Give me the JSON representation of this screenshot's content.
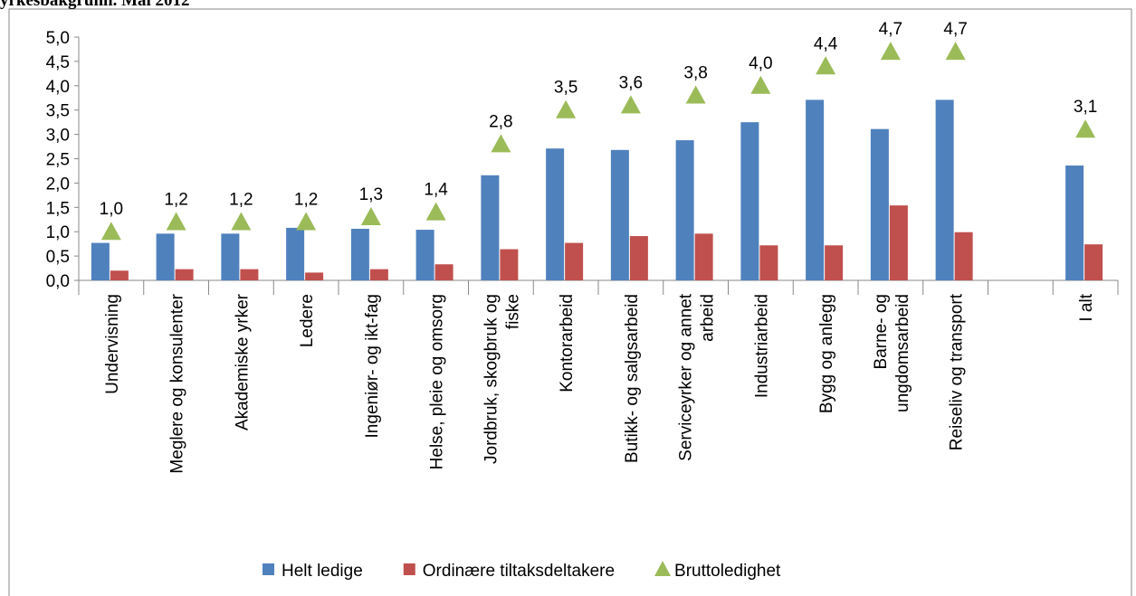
{
  "chart_data": {
    "type": "bar",
    "title": "yrkesbakgrunn. Mai 2012",
    "categories": [
      "Undervisning",
      "Meglere og konsulenter",
      "Akademiske yrker",
      "Ledere",
      "Ingeniør- og ikt-fag",
      "Helse, pleie og omsorg",
      "Jordbruk, skogbruk og fiske",
      "Kontorarbeid",
      "Butikk- og salgsarbeid",
      "Serviceyrker og annet arbeid",
      "Industriarbeid",
      "Bygg og anlegg",
      "Barne- og ungdomsarbeid",
      "Reiseliv og transport",
      null,
      "I alt"
    ],
    "series": [
      {
        "name": "Helt ledige",
        "color": "#4f81bd",
        "values": [
          0.77,
          0.96,
          0.96,
          1.08,
          1.06,
          1.04,
          2.16,
          2.71,
          2.68,
          2.88,
          3.25,
          3.71,
          3.11,
          3.71,
          null,
          2.36
        ]
      },
      {
        "name": "Ordinære tiltaksdeltakere",
        "color": "#c0504d",
        "values": [
          0.2,
          0.23,
          0.23,
          0.16,
          0.23,
          0.33,
          0.64,
          0.77,
          0.91,
          0.96,
          0.72,
          0.72,
          1.54,
          0.99,
          null,
          0.74
        ]
      },
      {
        "name": "Bruttoledighet",
        "color": "#9bbb59",
        "marker": "triangle",
        "values": [
          1.0,
          1.2,
          1.2,
          1.2,
          1.3,
          1.4,
          2.8,
          3.5,
          3.6,
          3.8,
          4.0,
          4.4,
          4.7,
          4.7,
          null,
          3.1
        ],
        "value_labels": [
          "1,0",
          "1,2",
          "1,2",
          "1,2",
          "1,3",
          "1,4",
          "2,8",
          "3,5",
          "3,6",
          "3,8",
          "4,0",
          "4,4",
          "4,7",
          "4,7",
          null,
          "3,1"
        ]
      }
    ],
    "ylim": [
      0,
      5
    ],
    "yticks": [
      {
        "value": 0,
        "label": "0,0"
      },
      {
        "value": 0.5,
        "label": "0,5"
      },
      {
        "value": 1,
        "label": "1,0"
      },
      {
        "value": 1.5,
        "label": "1,5"
      },
      {
        "value": 2,
        "label": "2,0"
      },
      {
        "value": 2.5,
        "label": "2,5"
      },
      {
        "value": 3,
        "label": "3,0"
      },
      {
        "value": 3.5,
        "label": "3,5"
      },
      {
        "value": 4,
        "label": "4,0"
      },
      {
        "value": 4.5,
        "label": "4,5"
      },
      {
        "value": 5,
        "label": "5,0"
      }
    ],
    "grid": false,
    "legend": "bottom"
  }
}
